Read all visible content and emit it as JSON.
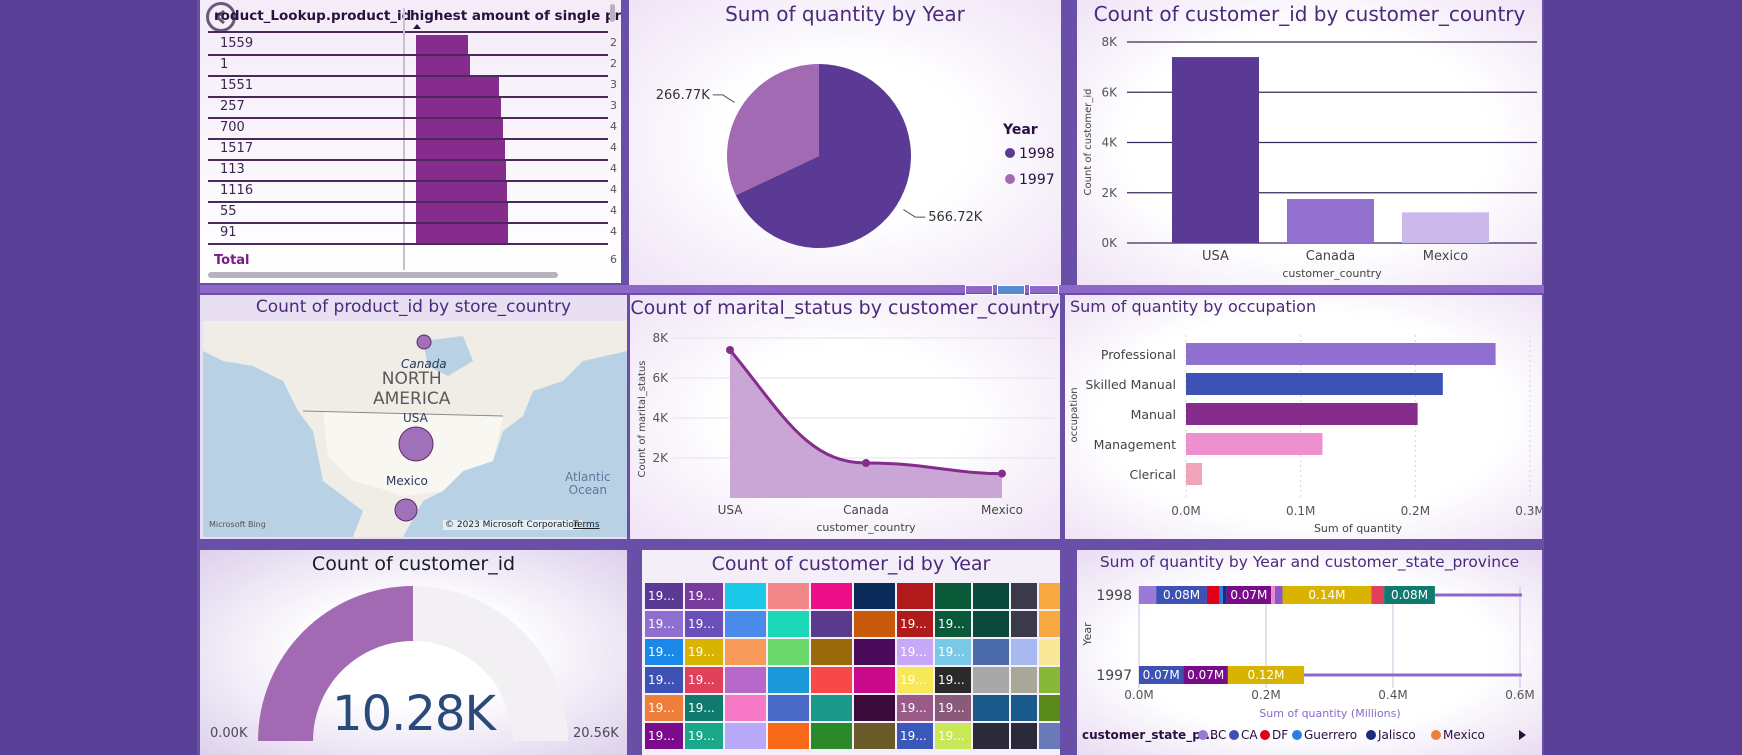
{
  "colors": {
    "background": "#5a3f96",
    "accent": "#862c8c",
    "pie_1998": "#5a3a94",
    "pie_1997": "#a36ab4"
  },
  "table": {
    "headers": [
      "roduct_Lookup.product_id",
      "highest amount of single prod"
    ],
    "rows": [
      {
        "id": "1559",
        "bar": 0.47,
        "trunc": "2"
      },
      {
        "id": "1",
        "bar": 0.49,
        "trunc": "2"
      },
      {
        "id": "1551",
        "bar": 0.75,
        "trunc": "3"
      },
      {
        "id": "257",
        "bar": 0.77,
        "trunc": "3"
      },
      {
        "id": "700",
        "bar": 0.79,
        "trunc": "4"
      },
      {
        "id": "1517",
        "bar": 0.81,
        "trunc": "4"
      },
      {
        "id": "113",
        "bar": 0.82,
        "trunc": "4"
      },
      {
        "id": "1116",
        "bar": 0.83,
        "trunc": "4"
      },
      {
        "id": "55",
        "bar": 0.84,
        "trunc": "4"
      },
      {
        "id": "91",
        "bar": 0.84,
        "trunc": "4"
      }
    ],
    "total_label": "Total",
    "total_trunc": "6",
    "back_icon": "back-arrow-icon"
  },
  "pie": {
    "title": "Sum of quantity by Year",
    "legend_title": "Year",
    "chart_data": {
      "type": "pie",
      "labels": [
        "1998",
        "1997"
      ],
      "values": [
        566.72,
        266.77
      ],
      "units": "K",
      "data_labels": [
        "566.72K",
        "266.77K"
      ]
    }
  },
  "country_bar": {
    "title": "Count of customer_id by customer_country",
    "chart_data": {
      "type": "bar",
      "categories": [
        "USA",
        "Canada",
        "Mexico"
      ],
      "values": [
        7400,
        1750,
        1220
      ],
      "xlabel": "customer_country",
      "ylabel": "Count of customer_id",
      "ylim": [
        0,
        8000
      ],
      "ticks": [
        "0K",
        "2K",
        "4K",
        "6K",
        "8K"
      ]
    }
  },
  "map": {
    "title": "Count of product_id by store_country",
    "continent": [
      "NORTH",
      "AMERICA"
    ],
    "labels": {
      "canada": "Canada",
      "usa": "USA",
      "mexico": "Mexico",
      "ocean": [
        "Atlantic",
        "Ocean"
      ]
    },
    "credit": "© 2023 Microsoft Corporation",
    "terms": "Terms",
    "bing": "Microsoft Bing"
  },
  "area": {
    "title": "Count of marital_status by customer_country",
    "chart_data": {
      "type": "area",
      "categories": [
        "USA",
        "Canada",
        "Mexico"
      ],
      "values": [
        7400,
        1750,
        1220
      ],
      "xlabel": "customer_country",
      "ylabel": "Count of marital_status",
      "ylim": [
        0,
        8000
      ],
      "ticks": [
        "2K",
        "4K",
        "6K",
        "8K"
      ]
    }
  },
  "occupation": {
    "title": "Sum of quantity by occupation",
    "chart_data": {
      "type": "bar",
      "orientation": "horizontal",
      "categories": [
        "Professional",
        "Skilled Manual",
        "Manual",
        "Management",
        "Clerical"
      ],
      "values": [
        0.27,
        0.224,
        0.202,
        0.119,
        0.014
      ],
      "colors": [
        "#8f6fd0",
        "#3e52b5",
        "#862c8c",
        "#ee8fd0",
        "#f2a5b8"
      ],
      "xlabel": "Sum of quantity",
      "ylabel": "occupation",
      "xlim": [
        0,
        0.3
      ],
      "ticks": [
        "0.0M",
        "0.1M",
        "0.2M",
        "0.3M"
      ]
    }
  },
  "gauge": {
    "title": "Count of customer_id",
    "value": "10.28K",
    "min": "0.00K",
    "max": "20.56K",
    "fraction": 0.5
  },
  "treemap": {
    "title": "Count of customer_id by Year",
    "cell_label": "19..."
  },
  "stacked": {
    "title": "Sum of quantity by Year and customer_state_province",
    "chart_data": {
      "type": "bar",
      "orientation": "horizontal",
      "stacked": true,
      "categories": [
        "1998",
        "1997"
      ],
      "xlabel": "Sum of quantity (Millions)",
      "ylabel": "Year",
      "xlim": [
        0,
        0.6
      ],
      "ticks": [
        "0.0M",
        "0.2M",
        "0.4M",
        "0.6M"
      ],
      "segments_1998": [
        {
          "v": 0.027,
          "c": "#9a7ad6",
          "label": ""
        },
        {
          "v": 0.08,
          "c": "#3e52b5",
          "label": "0.08M"
        },
        {
          "v": 0.02,
          "c": "#e0001a",
          "label": ""
        },
        {
          "v": 0.005,
          "c": "#2a7ee0",
          "label": ""
        },
        {
          "v": 0.006,
          "c": "#1a2a80",
          "label": ""
        },
        {
          "v": 0.07,
          "c": "#7a0c8c",
          "label": "0.07M"
        },
        {
          "v": 0.006,
          "c": "#ee88cc",
          "label": ""
        },
        {
          "v": 0.012,
          "c": "#8a58c8",
          "label": ""
        },
        {
          "v": 0.14,
          "c": "#d8b400",
          "label": "0.14M"
        },
        {
          "v": 0.02,
          "c": "#e0405a",
          "label": ""
        },
        {
          "v": 0.08,
          "c": "#117a6e",
          "label": "0.08M"
        }
      ],
      "segments_1997": [
        {
          "v": 0.07,
          "c": "#3e52b5",
          "label": "0.07M"
        },
        {
          "v": 0.07,
          "c": "#7a0c8c",
          "label": "0.07M"
        },
        {
          "v": 0.12,
          "c": "#d8b400",
          "label": "0.12M"
        }
      ]
    },
    "legend_title": "customer_state_p...",
    "legend": [
      {
        "name": "BC",
        "c": "#9a7ad6"
      },
      {
        "name": "CA",
        "c": "#3e52b5"
      },
      {
        "name": "DF",
        "c": "#e0001a"
      },
      {
        "name": "Guerrero",
        "c": "#2a7ee0"
      },
      {
        "name": "Jalisco",
        "c": "#1a2a80"
      },
      {
        "name": "Mexico",
        "c": "#ee7e3a"
      }
    ]
  }
}
